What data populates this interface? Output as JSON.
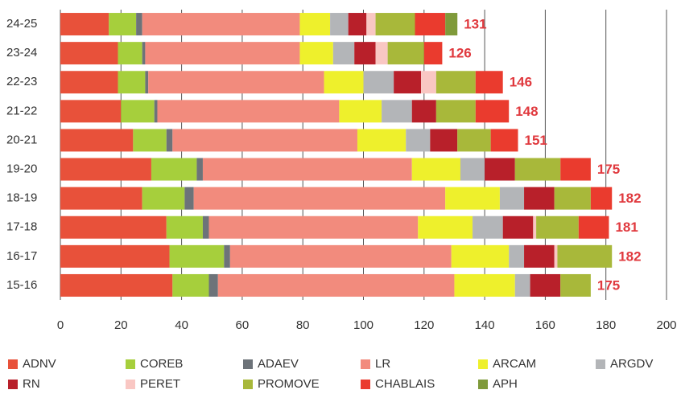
{
  "chart_data": {
    "type": "stacked-bar-horizontal",
    "categories": [
      "24-25",
      "23-24",
      "22-23",
      "21-22",
      "20-21",
      "19-20",
      "18-19",
      "17-18",
      "16-17",
      "15-16"
    ],
    "series": [
      {
        "name": "ADNV",
        "color": "#e8513a",
        "values": [
          16,
          19,
          19,
          20,
          24,
          30,
          27,
          35,
          36,
          37
        ]
      },
      {
        "name": "COREB",
        "color": "#a6cf3c",
        "values": [
          9,
          8,
          9,
          11,
          11,
          15,
          14,
          12,
          18,
          12
        ]
      },
      {
        "name": "ADAEV",
        "color": "#6d7379",
        "values": [
          2,
          1,
          1,
          1,
          2,
          2,
          3,
          2,
          2,
          3
        ]
      },
      {
        "name": "LR",
        "color": "#f28b7d",
        "values": [
          52,
          51,
          58,
          60,
          61,
          69,
          83,
          69,
          73,
          78
        ]
      },
      {
        "name": "ARCAM",
        "color": "#eef02c",
        "values": [
          10,
          11,
          13,
          14,
          16,
          16,
          18,
          18,
          19,
          20
        ]
      },
      {
        "name": "ARGDV",
        "color": "#b3b5b8",
        "values": [
          6,
          7,
          10,
          10,
          8,
          8,
          8,
          10,
          5,
          5
        ]
      },
      {
        "name": "RN",
        "color": "#b8202a",
        "values": [
          6,
          7,
          9,
          8,
          9,
          10,
          10,
          10,
          10,
          10
        ]
      },
      {
        "name": "PERET",
        "color": "#f9c7c3",
        "values": [
          3,
          4,
          5,
          0,
          0,
          0,
          0,
          1,
          1,
          0
        ]
      },
      {
        "name": "PROMOVE",
        "color": "#a8b83a",
        "values": [
          13,
          12,
          13,
          13,
          11,
          15,
          12,
          14,
          18,
          10
        ]
      },
      {
        "name": "CHABLAIS",
        "color": "#ea3b2e",
        "values": [
          10,
          6,
          9,
          11,
          9,
          10,
          7,
          10,
          0,
          0
        ]
      },
      {
        "name": "APH",
        "color": "#7f9a3a",
        "values": [
          4,
          0,
          0,
          0,
          0,
          0,
          0,
          0,
          0,
          0
        ]
      }
    ],
    "totals": [
      131,
      126,
      146,
      148,
      151,
      175,
      182,
      181,
      182,
      175
    ],
    "xlim": [
      0,
      200
    ],
    "xticks": [
      0,
      20,
      40,
      60,
      80,
      100,
      120,
      140,
      160,
      180,
      200
    ],
    "grid": true
  }
}
